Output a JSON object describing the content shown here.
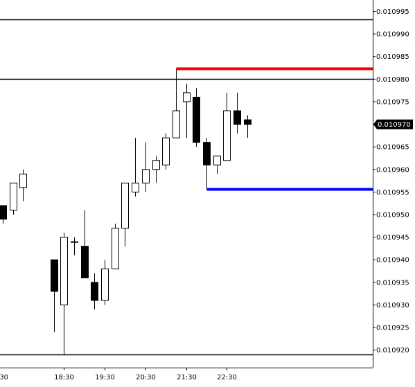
{
  "chart_data": {
    "type": "candlestick",
    "y_range": [
      0.0109175,
      0.0109995
    ],
    "x_ticks": [
      {
        "label": "18:30",
        "at": 6
      },
      {
        "label": "19:30",
        "at": 10
      },
      {
        "label": "20:30",
        "at": 14
      },
      {
        "label": "21:30",
        "at": 18
      },
      {
        "label": "22:30",
        "at": 22
      }
    ],
    "y_ticks": [
      "0.010995",
      "0.010990",
      "0.010985",
      "0.010980",
      "0.010975",
      "0.010970",
      "0.010965",
      "0.010960",
      "0.010955",
      "0.010950",
      "0.010945",
      "0.010940",
      "0.010935",
      "0.010930",
      "0.010925",
      "0.010920"
    ],
    "current_price": {
      "label": "0.010970",
      "value": 0.01097
    },
    "candles": [
      {
        "index": 0,
        "open": 0.010952,
        "high": 0.010952,
        "low": 0.010948,
        "close": 0.010949
      },
      {
        "index": 1,
        "open": 0.010951,
        "high": 0.010957,
        "low": 0.01095,
        "close": 0.010957
      },
      {
        "index": 2,
        "open": 0.010956,
        "high": 0.01096,
        "low": 0.010953,
        "close": 0.010959
      },
      {
        "index": 5,
        "open": 0.01094,
        "high": 0.01094,
        "low": 0.010924,
        "close": 0.010933
      },
      {
        "index": 6,
        "open": 0.01093,
        "high": 0.010946,
        "low": 0.010919,
        "close": 0.010945
      },
      {
        "index": 7,
        "open": 0.010944,
        "high": 0.010945,
        "low": 0.010941,
        "close": 0.010944
      },
      {
        "index": 8,
        "open": 0.010943,
        "high": 0.010951,
        "low": 0.010936,
        "close": 0.010936
      },
      {
        "index": 9,
        "open": 0.010935,
        "high": 0.010937,
        "low": 0.010929,
        "close": 0.010931
      },
      {
        "index": 10,
        "open": 0.010931,
        "high": 0.01094,
        "low": 0.01093,
        "close": 0.010938
      },
      {
        "index": 11,
        "open": 0.010938,
        "high": 0.010948,
        "low": 0.010938,
        "close": 0.010947
      },
      {
        "index": 12,
        "open": 0.010947,
        "high": 0.010957,
        "low": 0.010943,
        "close": 0.010957
      },
      {
        "index": 13,
        "open": 0.010955,
        "high": 0.010967,
        "low": 0.010954,
        "close": 0.010957
      },
      {
        "index": 14,
        "open": 0.010957,
        "high": 0.010966,
        "low": 0.010955,
        "close": 0.01096
      },
      {
        "index": 15,
        "open": 0.01096,
        "high": 0.010963,
        "low": 0.010957,
        "close": 0.010962
      },
      {
        "index": 16,
        "open": 0.010961,
        "high": 0.010968,
        "low": 0.01096,
        "close": 0.010967
      },
      {
        "index": 17,
        "open": 0.010967,
        "high": 0.010981,
        "low": 0.010967,
        "close": 0.010973
      },
      {
        "index": 18,
        "open": 0.010975,
        "high": 0.010979,
        "low": 0.010967,
        "close": 0.010977
      },
      {
        "index": 19,
        "open": 0.010976,
        "high": 0.010978,
        "low": 0.010965,
        "close": 0.010966
      },
      {
        "index": 20,
        "open": 0.010966,
        "high": 0.010967,
        "low": 0.010957,
        "close": 0.010961
      },
      {
        "index": 21,
        "open": 0.010961,
        "high": 0.010963,
        "low": 0.010959,
        "close": 0.010963
      },
      {
        "index": 22,
        "open": 0.010962,
        "high": 0.010977,
        "low": 0.010962,
        "close": 0.010973
      },
      {
        "index": 23,
        "open": 0.010973,
        "high": 0.010977,
        "low": 0.010968,
        "close": 0.01097
      },
      {
        "index": 24,
        "open": 0.010971,
        "high": 0.010972,
        "low": 0.010967,
        "close": 0.01097
      }
    ],
    "horizontal_levels": [
      {
        "value": 0.0109933,
        "color": "#000000"
      },
      {
        "value": 0.01098,
        "color": "#000000"
      },
      {
        "value": 0.010919,
        "color": "#000000"
      }
    ],
    "segments": [
      {
        "from_index": 17,
        "value": 0.0109823,
        "color": "#ff0000"
      },
      {
        "from_index": 20,
        "value": 0.0109556,
        "color": "#0000ff"
      }
    ],
    "colors": {
      "bull": "#ffffff",
      "bear": "#000000",
      "wick": "#000000",
      "grid": "#000000"
    }
  }
}
